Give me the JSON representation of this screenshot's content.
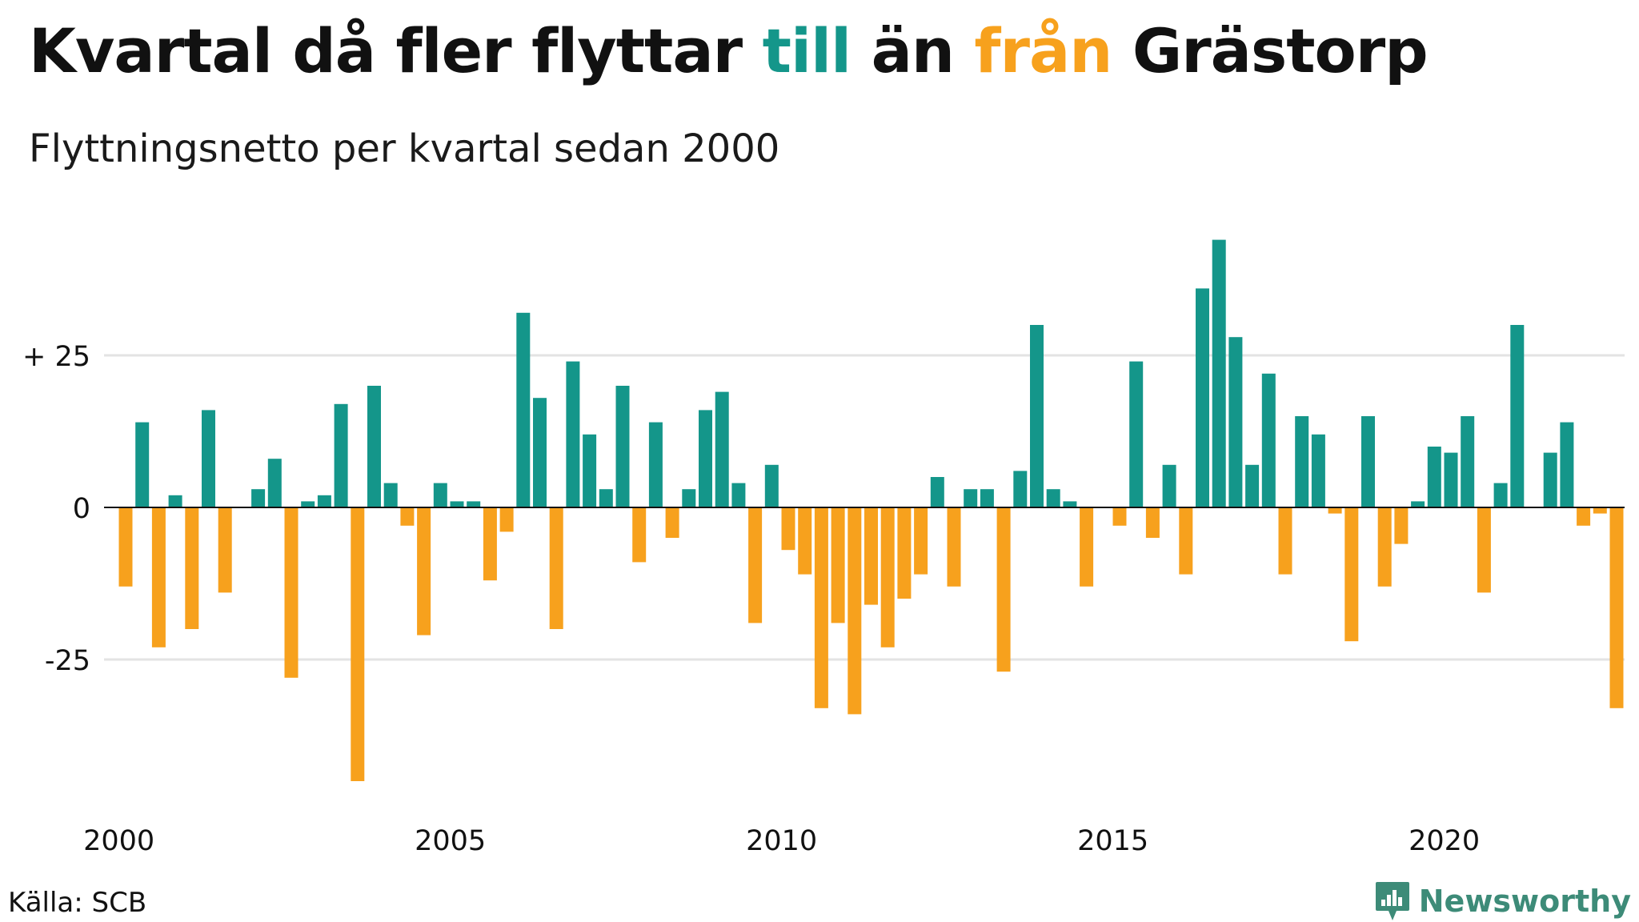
{
  "header": {
    "title_before": "Kvartal då fler flyttar ",
    "title_pos": "till",
    "title_mid": " än ",
    "title_neg": "från",
    "title_after": " Grästorp",
    "subtitle": "Flyttningsnetto per kvartal sedan 2000"
  },
  "footer": {
    "source": "Källa: SCB",
    "logo_text": "Newsworthy",
    "logo_icon": "newsworthy-logo-icon"
  },
  "colors": {
    "positive": "#14968a",
    "negative": "#f7a11d",
    "grid": "#e3e3e3",
    "logo": "#3d8b78"
  },
  "chart_data": {
    "type": "bar",
    "title": "Kvartal då fler flyttar till än från Grästorp",
    "subtitle": "Flyttningsnetto per kvartal sedan 2000",
    "xlabel": "",
    "ylabel": "",
    "x_start_year": 2000,
    "quarters_per_year": 4,
    "x_ticks": [
      "2000",
      "2005",
      "2010",
      "2015",
      "2020"
    ],
    "x_tick_years": [
      2000,
      2005,
      2010,
      2015,
      2020
    ],
    "y_ticks": [
      25,
      0,
      -25
    ],
    "y_tick_labels": [
      "+ 25",
      "0",
      "-25"
    ],
    "ylim": [
      -50,
      45
    ],
    "grid": true,
    "legend": "none",
    "values": [
      -13,
      14,
      -23,
      2,
      -20,
      16,
      -14,
      0,
      3,
      8,
      -28,
      1,
      2,
      17,
      -45,
      20,
      4,
      -3,
      -21,
      4,
      1,
      1,
      -12,
      -4,
      32,
      18,
      -20,
      24,
      12,
      3,
      20,
      -9,
      14,
      -5,
      3,
      16,
      19,
      4,
      -19,
      7,
      -7,
      -11,
      -33,
      -19,
      -34,
      -16,
      -23,
      -15,
      -11,
      5,
      -13,
      3,
      3,
      -27,
      6,
      30,
      3,
      1,
      -13,
      0,
      -3,
      24,
      -5,
      7,
      -11,
      36,
      44,
      28,
      7,
      22,
      -11,
      15,
      12,
      -1,
      -22,
      15,
      -13,
      -6,
      1,
      10,
      9,
      15,
      -14,
      4,
      30,
      0,
      9,
      14,
      -3,
      -1,
      -33
    ]
  }
}
